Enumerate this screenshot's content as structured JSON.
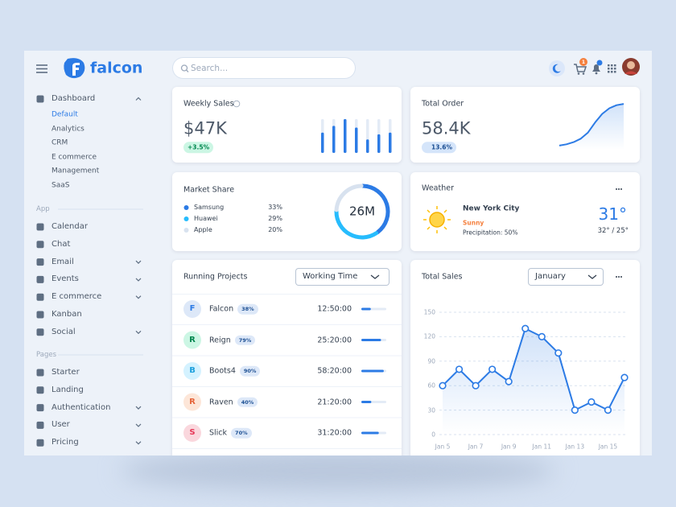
{
  "topbar": {
    "brand": "falcon",
    "search_placeholder": "Search...",
    "cart_count": "1"
  },
  "sidebar": {
    "groups": [
      {
        "items": [
          {
            "label": "Dashboard",
            "expanded": true,
            "children": [
              {
                "label": "Default",
                "active": true
              },
              {
                "label": "Analytics"
              },
              {
                "label": "CRM"
              },
              {
                "label": "E commerce"
              },
              {
                "label": "Management"
              },
              {
                "label": "SaaS"
              }
            ]
          }
        ]
      },
      {
        "title": "App",
        "items": [
          {
            "label": "Calendar"
          },
          {
            "label": "Chat"
          },
          {
            "label": "Email",
            "expandable": true
          },
          {
            "label": "Events",
            "expandable": true
          },
          {
            "label": "E commerce",
            "expandable": true
          },
          {
            "label": "Kanban"
          },
          {
            "label": "Social",
            "expandable": true
          }
        ]
      },
      {
        "title": "Pages",
        "items": [
          {
            "label": "Starter"
          },
          {
            "label": "Landing"
          },
          {
            "label": "Authentication",
            "expandable": true
          },
          {
            "label": "User",
            "expandable": true
          },
          {
            "label": "Pricing",
            "expandable": true
          }
        ]
      }
    ]
  },
  "weekly_sales": {
    "title": "Weekly Sales",
    "value": "$47K",
    "change": "+3.5%",
    "chart": {
      "type": "bar",
      "values": [
        60,
        80,
        100,
        75,
        40,
        55,
        60
      ],
      "ylim": [
        0,
        100
      ],
      "color": "#2c7be5"
    }
  },
  "total_order": {
    "title": "Total Order",
    "value": "58.4K",
    "change": "13.6%",
    "chart": {
      "type": "line",
      "values": [
        2,
        5,
        10,
        18,
        32,
        55,
        75,
        88,
        95,
        98
      ],
      "ylim": [
        0,
        100
      ],
      "color": "#2c7be5"
    }
  },
  "market_share": {
    "title": "Market Share",
    "total": "26M",
    "chart": {
      "type": "pie",
      "categories": [
        "Samsung",
        "Huawei",
        "Apple"
      ],
      "values": [
        33,
        29,
        20
      ],
      "value_labels": [
        "33%",
        "29%",
        "20%"
      ],
      "colors": [
        "#2c7be5",
        "#27bcfd",
        "#d8e2ef"
      ]
    }
  },
  "weather": {
    "title": "Weather",
    "city": "New York City",
    "condition": "Sunny",
    "precipitation": "Precipitation: 50%",
    "temperature": "31°",
    "range": "32° / 25°"
  },
  "running_projects": {
    "title": "Running Projects",
    "filter": "Working Time",
    "rows": [
      {
        "initial": "F",
        "name": "Falcon",
        "progress": 38,
        "progress_label": "38%",
        "time": "12:50:00",
        "color": "#2c7be5",
        "bg": "#dde8f8"
      },
      {
        "initial": "R",
        "name": "Reign",
        "progress": 79,
        "progress_label": "79%",
        "time": "25:20:00",
        "color": "#00864e",
        "bg": "#ccf6e4"
      },
      {
        "initial": "B",
        "name": "Boots4",
        "progress": 90,
        "progress_label": "90%",
        "time": "58:20:00",
        "color": "#1d9fdc",
        "bg": "#d4f2ff"
      },
      {
        "initial": "R",
        "name": "Raven",
        "progress": 40,
        "progress_label": "40%",
        "time": "21:20:00",
        "color": "#e5643a",
        "bg": "#fde6d8"
      },
      {
        "initial": "S",
        "name": "Slick",
        "progress": 70,
        "progress_label": "70%",
        "time": "31:20:00",
        "color": "#e63757",
        "bg": "#fad7dd"
      }
    ]
  },
  "total_sales": {
    "title": "Total Sales",
    "filter": "January",
    "chart": {
      "type": "line",
      "x": [
        "Jan 5",
        null,
        "Jan 7",
        null,
        "Jan 9",
        null,
        "Jan 11",
        null,
        "Jan 13",
        null,
        "Jan 15",
        null
      ],
      "values": [
        60,
        80,
        60,
        80,
        65,
        130,
        120,
        100,
        30,
        40,
        30,
        70
      ],
      "ylim": [
        0,
        150
      ],
      "yticks": [
        0,
        30,
        60,
        90,
        120,
        150
      ],
      "color": "#2c7be5",
      "grid": true
    }
  }
}
